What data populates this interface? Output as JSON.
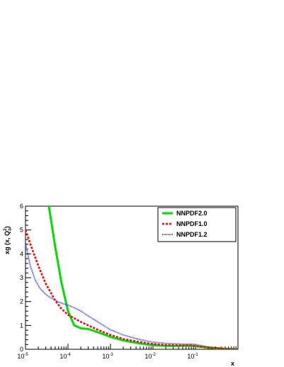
{
  "chart_data": {
    "type": "line",
    "title": "",
    "xlabel": "x",
    "ylabel": "xg (x, Q",
    "ylabel_sub": "0",
    "ylabel_sup": "2",
    "ylabel_close": ")",
    "xscale": "log",
    "xlim": [
      1e-05,
      1
    ],
    "ylim": [
      0,
      6
    ],
    "grid": false,
    "legend_position": "top-right",
    "x_ticks": [
      {
        "base": "10",
        "exp": "-5",
        "value": 1e-05
      },
      {
        "base": "10",
        "exp": "-4",
        "value": 0.0001
      },
      {
        "base": "10",
        "exp": "-3",
        "value": 0.001
      },
      {
        "base": "10",
        "exp": "-2",
        "value": 0.01
      },
      {
        "base": "10",
        "exp": "-1",
        "value": 0.1
      }
    ],
    "y_ticks": [
      "0",
      "1",
      "2",
      "3",
      "4",
      "5",
      "6"
    ],
    "series": [
      {
        "name": "NNPDF2.0",
        "color": "#00dd00",
        "style": "solid",
        "x": [
          3.55e-05,
          5e-05,
          7e-05,
          0.0001,
          0.00014,
          0.0002,
          0.0003,
          0.0005,
          0.001,
          0.002,
          0.005,
          0.01,
          0.02,
          0.04,
          0.06,
          0.1,
          0.2,
          0.4,
          0.7,
          0.95
        ],
        "y": [
          6.0,
          4.3,
          2.8,
          1.6,
          1.0,
          0.88,
          0.85,
          0.72,
          0.52,
          0.37,
          0.24,
          0.17,
          0.14,
          0.14,
          0.15,
          0.13,
          0.07,
          0.03,
          0.01,
          0.0
        ]
      },
      {
        "name": "NNPDF1.0",
        "color": "#ff0000",
        "style": "dashed",
        "x": [
          1e-05,
          1.5e-05,
          2e-05,
          3e-05,
          5e-05,
          7e-05,
          0.0001,
          0.00015,
          0.0002,
          0.0003,
          0.0005,
          0.001,
          0.002,
          0.005,
          0.01,
          0.02,
          0.05,
          0.08,
          0.1,
          0.2,
          0.4,
          0.7,
          0.95
        ],
        "y": [
          5.0,
          4.1,
          3.5,
          2.75,
          2.05,
          1.7,
          1.45,
          1.27,
          1.15,
          1.0,
          0.82,
          0.6,
          0.43,
          0.3,
          0.22,
          0.18,
          0.16,
          0.17,
          0.14,
          0.07,
          0.04,
          0.01,
          0.0
        ]
      },
      {
        "name": "NNPDF1.2",
        "color": "#3333ff",
        "style": "dotted",
        "x": [
          1e-05,
          1.3e-05,
          1.7e-05,
          2.2e-05,
          3e-05,
          4e-05,
          6e-05,
          8e-05,
          0.0001,
          0.00015,
          0.0002,
          0.0003,
          0.0005,
          0.001,
          0.002,
          0.005,
          0.01,
          0.02,
          0.05,
          0.08,
          0.1,
          0.2,
          0.4,
          0.7,
          0.95
        ],
        "y": [
          4.45,
          3.5,
          2.9,
          2.55,
          2.3,
          2.15,
          1.98,
          1.9,
          1.85,
          1.72,
          1.6,
          1.4,
          1.15,
          0.82,
          0.6,
          0.4,
          0.3,
          0.25,
          0.22,
          0.22,
          0.2,
          0.1,
          0.04,
          0.01,
          0.0
        ]
      }
    ]
  }
}
